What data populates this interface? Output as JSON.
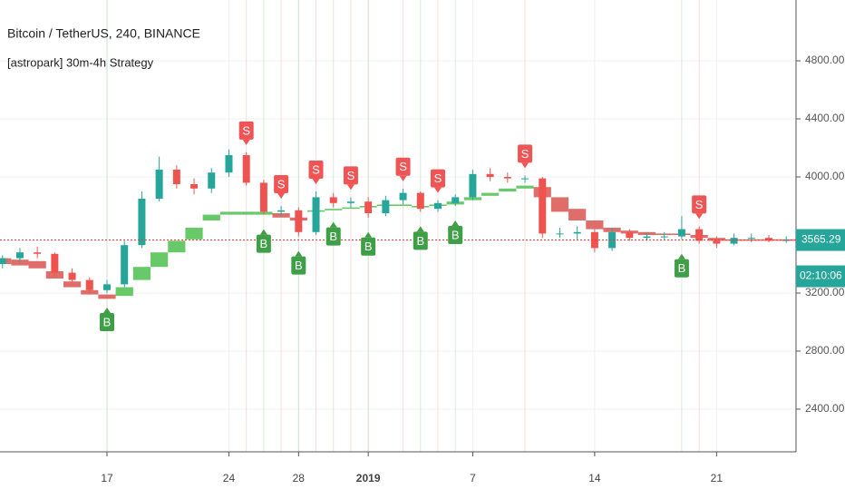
{
  "chart_data": {
    "type": "candlestick",
    "title": "Bitcoin / TetherUS, 240, BINANCE",
    "subtitle": "[astropark] 30m-4h Strategy",
    "categories": [
      null,
      null,
      null,
      null,
      null,
      null,
      "17",
      null,
      null,
      null,
      null,
      null,
      null,
      "24",
      null,
      null,
      null,
      "28",
      null,
      null,
      null,
      "2019",
      null,
      null,
      null,
      null,
      null,
      "7",
      null,
      null,
      null,
      null,
      null,
      null,
      "14",
      null,
      null,
      null,
      null,
      null,
      null,
      "21",
      null,
      null,
      null,
      null
    ],
    "open": [
      3400,
      3440,
      3480,
      3470,
      3340,
      3290,
      3220,
      3260,
      3530,
      3850,
      4050,
      3950,
      3920,
      4030,
      4150,
      3960,
      3760,
      3770,
      3620,
      3860,
      3820,
      3830,
      3750,
      3840,
      3890,
      3780,
      3820,
      3860,
      4020,
      4000,
      3990,
      3990,
      3610,
      3610,
      3620,
      3510,
      3620,
      3580,
      3590,
      3590,
      3640,
      3560,
      3540,
      3580,
      3580,
      3560
    ],
    "high": [
      3460,
      3510,
      3520,
      3480,
      3370,
      3310,
      3290,
      3560,
      3900,
      4140,
      4080,
      3990,
      4060,
      4190,
      4170,
      3980,
      3800,
      3790,
      3900,
      3890,
      3860,
      3860,
      3870,
      3920,
      3900,
      3840,
      3880,
      4050,
      4060,
      4030,
      4010,
      4000,
      3650,
      3660,
      3640,
      3650,
      3640,
      3620,
      3620,
      3730,
      3660,
      3590,
      3610,
      3610,
      3600,
      3590
    ],
    "low": [
      3370,
      3410,
      3440,
      3320,
      3270,
      3190,
      3200,
      3240,
      3510,
      3830,
      3920,
      3880,
      3890,
      4000,
      3940,
      3740,
      3730,
      3590,
      3600,
      3790,
      3790,
      3720,
      3730,
      3810,
      3760,
      3760,
      3800,
      3840,
      3970,
      3960,
      3960,
      3580,
      3580,
      3570,
      3480,
      3490,
      3560,
      3560,
      3570,
      3570,
      3540,
      3510,
      3530,
      3550,
      3550,
      3545
    ],
    "close": [
      3440,
      3480,
      3470,
      3340,
      3290,
      3220,
      3260,
      3530,
      3850,
      4050,
      3950,
      3920,
      4030,
      4150,
      3960,
      3760,
      3770,
      3620,
      3860,
      3820,
      3830,
      3750,
      3840,
      3890,
      3780,
      3820,
      3860,
      4020,
      4000,
      3990,
      3990,
      3610,
      3610,
      3620,
      3510,
      3620,
      3580,
      3590,
      3590,
      3640,
      3560,
      3540,
      3580,
      3580,
      3560,
      3565
    ],
    "up_color": "#26a69a",
    "down_color": "#ef5350",
    "band_top": [
      3440,
      3430,
      3420,
      3350,
      3280,
      3220,
      3190,
      3240,
      3380,
      3480,
      3560,
      3650,
      3740,
      3760,
      3760,
      3760,
      3750,
      3720,
      3770,
      3780,
      3790,
      3800,
      3810,
      3810,
      3800,
      3810,
      3830,
      3860,
      3890,
      3920,
      3940,
      3930,
      3860,
      3780,
      3700,
      3650,
      3630,
      3620,
      3610,
      3610,
      3600,
      3580,
      3570,
      3570,
      3570,
      3570
    ],
    "band_bottom": [
      3400,
      3390,
      3370,
      3300,
      3240,
      3190,
      3160,
      3180,
      3290,
      3380,
      3480,
      3570,
      3700,
      3740,
      3740,
      3740,
      3720,
      3700,
      3760,
      3770,
      3780,
      3790,
      3800,
      3800,
      3790,
      3800,
      3810,
      3840,
      3870,
      3900,
      3920,
      3860,
      3760,
      3700,
      3640,
      3620,
      3610,
      3600,
      3600,
      3600,
      3580,
      3560,
      3560,
      3560,
      3560,
      3560
    ],
    "band_colors": [
      "#d9534f",
      "#d9534f",
      "#d9534f",
      "#d9534f",
      "#d9534f",
      "#d9534f",
      "#d9534f",
      "#4cc04c",
      "#4cc04c",
      "#4cc04c",
      "#4cc04c",
      "#4cc04c",
      "#4cc04c",
      "#4cc04c",
      "#4cc04c",
      "#4cc04c",
      "#d9534f",
      "#d9534f",
      "#4cc04c",
      "#4cc04c",
      "#4cc04c",
      "#4cc04c",
      "#4cc04c",
      "#4cc04c",
      "#4cc04c",
      "#4cc04c",
      "#4cc04c",
      "#4cc04c",
      "#4cc04c",
      "#4cc04c",
      "#4cc04c",
      "#d9534f",
      "#d9534f",
      "#d9534f",
      "#d9534f",
      "#d9534f",
      "#d9534f",
      "#d9534f",
      "#d9534f",
      "#d9534f",
      "#d9534f",
      "#d9534f",
      "#d9534f",
      "#d9534f",
      "#d9534f",
      "#d9534f"
    ],
    "signals": [
      null,
      null,
      null,
      null,
      null,
      null,
      "B",
      null,
      null,
      null,
      null,
      null,
      null,
      null,
      "S",
      "B",
      "S",
      "B",
      "S",
      "B",
      "S",
      "B",
      null,
      "S",
      "B",
      "S",
      "B",
      null,
      null,
      null,
      "S",
      null,
      null,
      null,
      null,
      null,
      null,
      null,
      null,
      "B",
      "S",
      null,
      null,
      null,
      null,
      null
    ],
    "buy_color": "#3f9f46",
    "sell_color": "#f05454",
    "ylim": [
      2106,
      5219
    ],
    "yticks": [
      {
        "value": 2400,
        "label": "2400.00"
      },
      {
        "value": 2800,
        "label": "2800.00"
      },
      {
        "value": 3200,
        "label": "3200.00"
      },
      {
        "value": 4000,
        "label": "4000.00"
      },
      {
        "value": 4400,
        "label": "4400.00"
      },
      {
        "value": 4800,
        "label": "4800.00"
      }
    ],
    "last_price": 3565.29,
    "countdown": "02:10:06",
    "grid": true
  }
}
